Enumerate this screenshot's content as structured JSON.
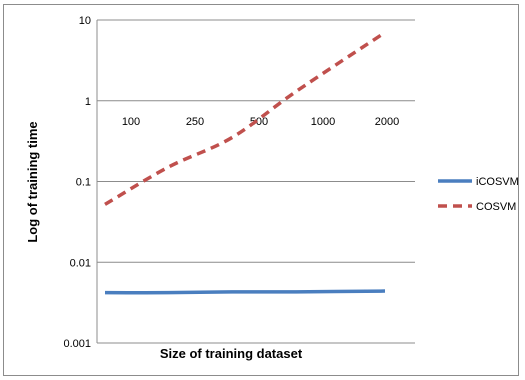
{
  "chart_data": {
    "type": "line",
    "title": "",
    "xlabel": "Size of training dataset",
    "ylabel": "Log of training time",
    "yscale": "log",
    "ylim": [
      0.001,
      10
    ],
    "yticks": [
      "10",
      "1",
      "0.1",
      "0.01",
      "0.001"
    ],
    "yticks_values": [
      10,
      1,
      0.1,
      0.01,
      0.001
    ],
    "categories": [
      "100",
      "250",
      "500",
      "1000",
      "2000"
    ],
    "grid": true,
    "legend_position": "right",
    "series": [
      {
        "name": "iCOSVM",
        "color": "#4a7ebf",
        "style": "solid",
        "values": [
          0.0042,
          0.0042,
          0.0043,
          0.0043,
          0.0044
        ]
      },
      {
        "name": "COSVM",
        "color": "#c0504d",
        "style": "dashed",
        "values": [
          0.052,
          0.15,
          0.35,
          1.3,
          7.0
        ]
      }
    ]
  }
}
